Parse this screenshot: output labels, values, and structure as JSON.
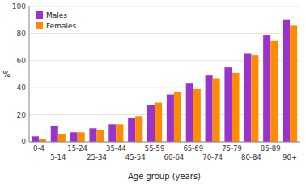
{
  "chart_data": {
    "type": "bar",
    "categories": [
      "0-4",
      "5-14",
      "15-24",
      "25-34",
      "35-44",
      "45-54",
      "55-59",
      "60-64",
      "65-69",
      "70-74",
      "75-79",
      "80-84",
      "85-89",
      "90+"
    ],
    "series": [
      {
        "name": "Males",
        "color": "#9933CC",
        "values": [
          4,
          12,
          7,
          10,
          13,
          18,
          27,
          35,
          43,
          49,
          55,
          65,
          79,
          90
        ]
      },
      {
        "name": "Females",
        "color": "#FF8C00",
        "values": [
          2,
          6,
          7,
          9,
          13,
          19,
          29,
          37,
          39,
          47,
          51,
          64,
          75,
          86
        ]
      }
    ],
    "x_label": "Age group (years)",
    "y_label": "%",
    "ylim": [
      0,
      100
    ],
    "yticks": [
      0,
      20,
      40,
      60,
      80,
      100
    ],
    "grid": true,
    "legend": "upper left"
  }
}
